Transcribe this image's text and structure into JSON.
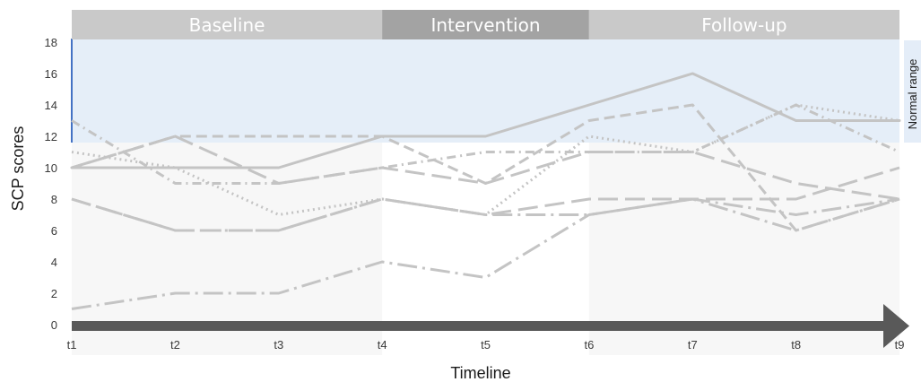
{
  "chart_data": {
    "type": "line",
    "title": "",
    "xlabel": "Timeline",
    "ylabel": "SCP scores",
    "x": [
      "t1",
      "t2",
      "t3",
      "t4",
      "t5",
      "t6",
      "t7",
      "t8",
      "t9"
    ],
    "ylim": [
      0,
      18
    ],
    "yticks": [
      0,
      2,
      4,
      6,
      8,
      10,
      12,
      14,
      16,
      18
    ],
    "grid": false,
    "legend": "none",
    "phases": [
      {
        "label": "Baseline",
        "start": "t1",
        "end": "t4",
        "color": "#c9c9c9"
      },
      {
        "label": "Intervention",
        "start": "t4",
        "end": "t6",
        "color": "#a3a3a3"
      },
      {
        "label": "Follow-up",
        "start": "t6",
        "end": "t9",
        "color": "#c9c9c9"
      }
    ],
    "normal_range": {
      "label": "Normal range",
      "ymin": 11.6,
      "ymax": 18,
      "color": "#e4edf8"
    },
    "series": [
      {
        "values": [
          10,
          10,
          10,
          12,
          12,
          14,
          16,
          13,
          13
        ],
        "dash": "solid"
      },
      {
        "values": [
          10,
          12,
          12,
          12,
          9,
          13,
          14,
          6,
          8
        ],
        "dash": "dash"
      },
      {
        "values": [
          11,
          10,
          7,
          8,
          7,
          12,
          11,
          14,
          13
        ],
        "dash": "dot"
      },
      {
        "values": [
          13,
          9,
          9,
          10,
          11,
          11,
          11,
          14,
          11
        ],
        "dash": "dashdot"
      },
      {
        "values": [
          10,
          12,
          9,
          10,
          9,
          11,
          11,
          9,
          8
        ],
        "dash": "longdash"
      },
      {
        "values": [
          8,
          6,
          6,
          8,
          7,
          8,
          8,
          8,
          10
        ],
        "dash": "longdash"
      },
      {
        "values": [
          8,
          6,
          6,
          8,
          7,
          7,
          8,
          7,
          8
        ],
        "dash": "longdashdot"
      },
      {
        "values": [
          1,
          2,
          2,
          4,
          3,
          7,
          8,
          6,
          8
        ],
        "dash": "longdashdot"
      }
    ]
  },
  "colors": {
    "line": "#c4c4c4",
    "baseline_shade": "#f7f7f7",
    "arrow": "#595959",
    "normal_range_edge": "#4472c4"
  }
}
